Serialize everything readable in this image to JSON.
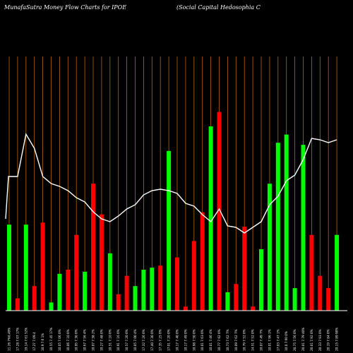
{
  "header": {
    "title_left": "MunafaSutra  Money Flow  Charts for IPOE",
    "title_right": "(Social Capital Hedosophia  C"
  },
  "colors": {
    "background": "#000000",
    "grid": "#b8640a",
    "up": "#00ff00",
    "down": "#ff0000",
    "line": "#ffffff",
    "baseline": "#ffffff"
  },
  "chart_data": {
    "type": "bar",
    "grid": true,
    "title": "MunafaSutra  Money Flow  Charts for IPOE",
    "subtitle": "(Social Capital Hedosophia  C",
    "categories": [
      "11.26 7%6.49%",
      "17.28 7.07 17%",
      "19.14 7.61 52%",
      "17.27 7.09.4",
      "10.9 7.6 1%",
      "10.55 7.45 17%",
      "10.05 7.06 0%",
      "10.06 7.10 0%",
      "10.95 7.30 0%",
      "10.67 7.56 4%",
      "10.07 7.58 2%",
      "10.27 7.48 0%",
      "10.51 7.10 0%",
      "10.91 7.16 0%",
      "10.57 7.20 0%",
      "10.05 7.00 4%",
      "17.32 7.26 0%",
      "17.40 7.30 0%",
      "17.35 7.25 0%",
      "17.01 7.20 0%",
      "10.17 7.40 0%",
      "10.17 7.49 0%",
      "10.98 7.50 0%",
      "10.01 7.63 0%",
      "10.01 7.46 4%",
      "10.77 7.62 0%",
      "10.73 7.62 7%",
      "10.09 7.62 7%",
      "10.79 7.52 0%",
      "14.51 7.52 0%",
      "10.07 7.49 7%",
      "10.01 7.96 1%",
      "17.03 7.47 1%",
      "10.0 7.60 0%",
      "20.75 7.56 0%",
      "20.01 7.79 40%",
      "20.01 7.92 0%",
      "20.33 7.93 0%",
      "20.19 7.84 0%",
      "20.15 7.89 90%"
    ],
    "series": [
      {
        "type": "bar",
        "values": [
          0.42,
          0.06,
          0.42,
          0.12,
          0.43,
          0.04,
          0.18,
          0.2,
          0.37,
          0.19,
          0.62,
          0.47,
          0.28,
          0.08,
          0.17,
          0.12,
          0.2,
          0.21,
          0.22,
          0.78,
          0.26,
          0.02,
          0.34,
          0.48,
          0.9,
          0.97,
          0.09,
          0.13,
          0.41,
          0.02,
          0.3,
          0.62,
          0.82,
          0.86,
          0.11,
          0.81,
          0.37,
          0.17,
          0.11,
          0.37
        ],
        "direction": [
          "up",
          "down",
          "up",
          "down",
          "down",
          "up",
          "up",
          "down",
          "down",
          "up",
          "down",
          "down",
          "up",
          "down",
          "down",
          "up",
          "up",
          "up",
          "down",
          "up",
          "down",
          "down",
          "down",
          "down",
          "up",
          "down",
          "up",
          "down",
          "down",
          "down",
          "up",
          "up",
          "up",
          "up",
          "up",
          "up",
          "down",
          "down",
          "down",
          "up"
        ]
      },
      {
        "type": "line",
        "values": [
          0.75,
          0.75,
          0.78,
          0.77,
          0.75,
          0.745,
          0.743,
          0.74,
          0.735,
          0.732,
          0.725,
          0.72,
          0.718,
          0.722,
          0.727,
          0.73,
          0.737,
          0.74,
          0.741,
          0.74,
          0.738,
          0.731,
          0.729,
          0.723,
          0.718,
          0.727,
          0.715,
          0.714,
          0.71,
          0.714,
          0.718,
          0.73,
          0.736,
          0.747,
          0.751,
          0.762,
          0.777,
          0.776,
          0.774,
          0.776
        ]
      }
    ]
  }
}
